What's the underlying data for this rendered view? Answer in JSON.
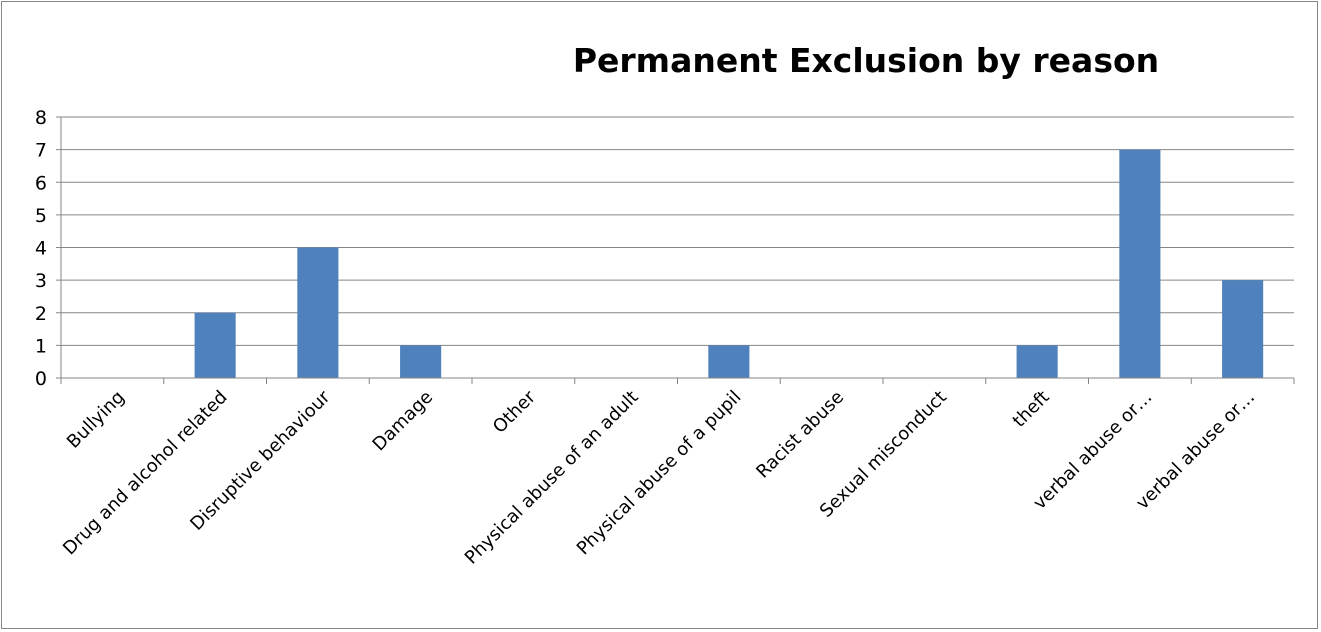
{
  "chart_data": {
    "type": "bar",
    "title": "Permanent Exclusion by reason",
    "xlabel": "",
    "ylabel": "",
    "categories": [
      "Bullying",
      "Drug and alcohol related",
      "Disruptive behaviour",
      "Damage",
      "Other",
      "Physical abuse of an adult",
      "Physical abuse of a pupil",
      "Racist abuse",
      "Sexual misconduct",
      "theft",
      "verbal abuse or…",
      "verbal abuse or…"
    ],
    "values": [
      0,
      2,
      4,
      1,
      0,
      0,
      1,
      0,
      0,
      1,
      7,
      3
    ],
    "ylim": [
      0,
      8
    ],
    "yticks": [
      0,
      1,
      2,
      3,
      4,
      5,
      6,
      7,
      8
    ],
    "grid": true,
    "legend": "none",
    "bar_color": "#4F81BD",
    "grid_color": "#868686",
    "axis_color": "#868686"
  }
}
